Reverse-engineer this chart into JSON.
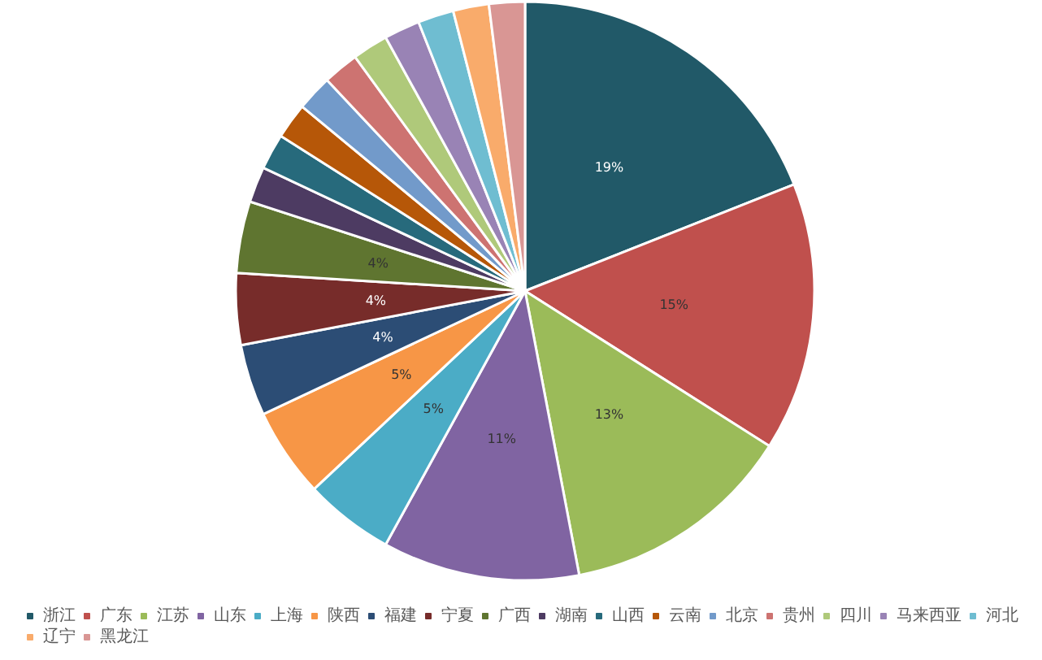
{
  "chart_data": {
    "type": "pie",
    "categories": [
      "浙江",
      "广东",
      "江苏",
      "山东",
      "上海",
      "陕西",
      "福建",
      "宁夏",
      "广西",
      "湖南",
      "山西",
      "云南",
      "北京",
      "贵州",
      "四川",
      "马来西亚",
      "河北",
      "辽宁",
      "黑龙江"
    ],
    "values": [
      19,
      15,
      13,
      11,
      5,
      5,
      4,
      4,
      4,
      2,
      2,
      2,
      2,
      2,
      2,
      2,
      2,
      2,
      2
    ],
    "value_labels": [
      "19%",
      "15%",
      "13%",
      "11%",
      "5%",
      "5%",
      "4%",
      "4%",
      "4%",
      null,
      null,
      null,
      null,
      null,
      null,
      null,
      null,
      null,
      null
    ],
    "colors": [
      "#215968",
      "#c0504d",
      "#9bbb59",
      "#8064a2",
      "#4bacc6",
      "#f79646",
      "#2c4d75",
      "#772c2a",
      "#5f7530",
      "#4d3b62",
      "#276a7c",
      "#b65708",
      "#729aca",
      "#cd7371",
      "#afc97a",
      "#9983b5",
      "#6fbdd1",
      "#f9ab6b",
      "#d99694"
    ],
    "legend": "bottom"
  }
}
